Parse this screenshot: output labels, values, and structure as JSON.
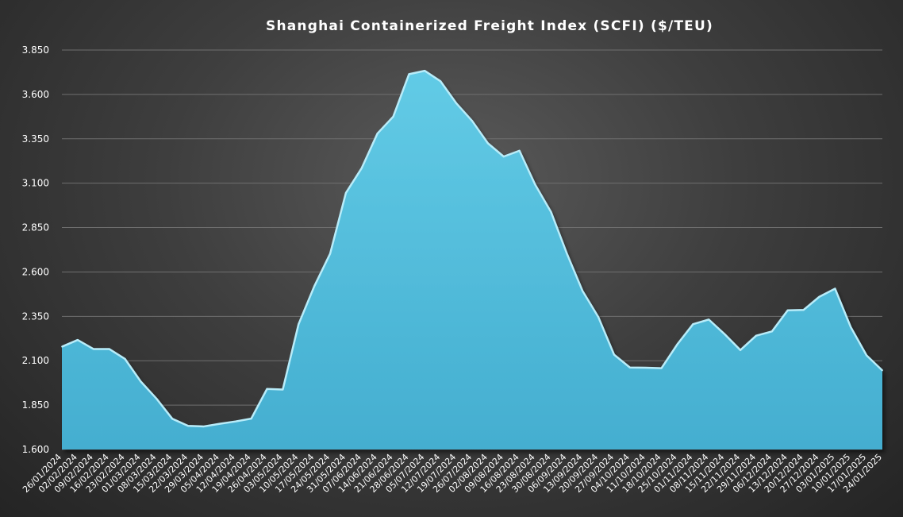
{
  "chart_data": {
    "type": "area",
    "title": "Shanghai  Containerized  Freight  Index  (SCFI)  ($/TEU)",
    "xlabel": "",
    "ylabel": "",
    "ylim": [
      1600,
      3850
    ],
    "ytick_step": 250,
    "y_tick_labels": [
      "1.600",
      "1.850",
      "2.100",
      "2.350",
      "2.600",
      "2.850",
      "3.100",
      "3.350",
      "3.600",
      "3.850"
    ],
    "grid": true,
    "legend": "none",
    "colors": {
      "fill_top": "#62cbe6",
      "fill_bottom": "#44aed0",
      "edge": "#b8ecf9"
    },
    "x": [
      "26/01/2024",
      "02/02/2024",
      "09/02/2024",
      "16/02/2024",
      "23/02/2024",
      "01/03/2024",
      "08/03/2024",
      "15/03/2024",
      "22/03/2024",
      "29/03/2024",
      "05/04/2024",
      "12/04/2024",
      "19/04/2024",
      "26/04/2024",
      "03/05/2024",
      "10/05/2024",
      "17/05/2024",
      "24/05/2024",
      "31/05/2024",
      "07/06/2024",
      "14/06/2024",
      "21/06/2024",
      "28/06/2024",
      "05/07/2024",
      "12/07/2024",
      "19/07/2024",
      "26/07/2024",
      "02/08/2024",
      "09/08/2024",
      "16/08/2024",
      "23/08/2024",
      "30/08/2024",
      "06/09/2024",
      "13/09/2024",
      "20/09/2024",
      "27/09/2024",
      "04/10/2024",
      "11/10/2024",
      "18/10/2024",
      "25/10/2024",
      "01/11/2024",
      "08/11/2024",
      "15/11/2024",
      "22/11/2024",
      "29/11/2024",
      "06/12/2024",
      "13/12/2024",
      "20/12/2024",
      "27/12/2024",
      "03/01/2025",
      "10/01/2025",
      "17/01/2025",
      "24/01/2025"
    ],
    "values": [
      2179,
      2217,
      2166,
      2166,
      2110,
      1983,
      1886,
      1773,
      1733,
      1730,
      1745,
      1758,
      1774,
      1941,
      1938,
      2306,
      2520,
      2703,
      3045,
      3185,
      3380,
      3475,
      3714,
      3733,
      3674,
      3550,
      3451,
      3325,
      3250,
      3283,
      3091,
      2938,
      2705,
      2493,
      2346,
      2134,
      2062,
      2061,
      2058,
      2192,
      2306,
      2332,
      2250,
      2160,
      2241,
      2265,
      2384,
      2386,
      2460,
      2506,
      2289,
      2130,
      2045
    ]
  }
}
